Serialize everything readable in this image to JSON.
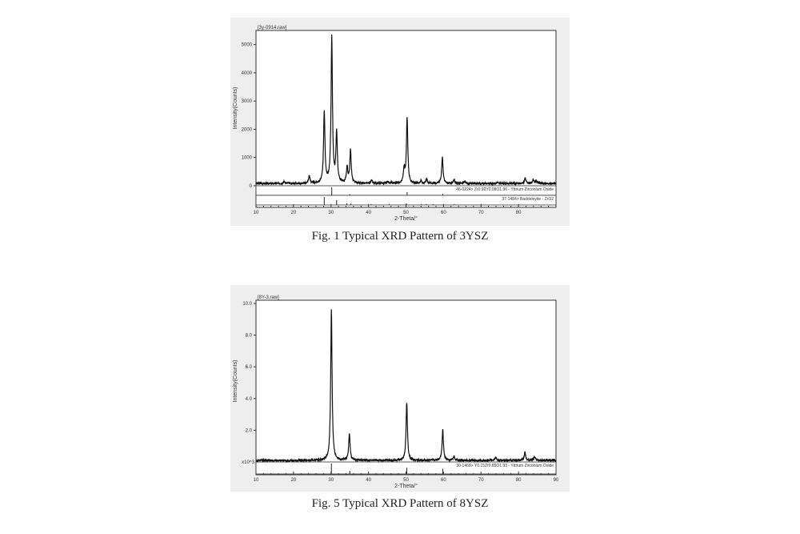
{
  "chart_data": [
    {
      "type": "line",
      "file_label": "[3y-0914.raw]",
      "xlabel": "2-Theta/°",
      "ylabel": "Intensity(Counts)",
      "xlim": [
        10,
        90
      ],
      "ylim": [
        0,
        5500
      ],
      "xticks": [
        10,
        20,
        30,
        40,
        50,
        60,
        70,
        80
      ],
      "yticks": [
        0,
        1000,
        2000,
        3000,
        4000,
        5000
      ],
      "y_multiplier_label": "",
      "baseline": 80,
      "peaks": [
        [
          17.5,
          150
        ],
        [
          24.2,
          350
        ],
        [
          28.2,
          2600
        ],
        [
          30.2,
          5250
        ],
        [
          31.5,
          1850
        ],
        [
          34.3,
          650
        ],
        [
          35.2,
          1250
        ],
        [
          38.5,
          100
        ],
        [
          40.8,
          200
        ],
        [
          45.0,
          150
        ],
        [
          46.0,
          120
        ],
        [
          49.5,
          600
        ],
        [
          50.3,
          2400
        ],
        [
          54.0,
          180
        ],
        [
          55.5,
          250
        ],
        [
          59.7,
          1000
        ],
        [
          62.8,
          200
        ],
        [
          65.7,
          150
        ],
        [
          74.4,
          120
        ],
        [
          81.8,
          280
        ],
        [
          83.9,
          200
        ],
        [
          84.7,
          180
        ],
        [
          88.0,
          60
        ]
      ],
      "references": [
        {
          "label": "46-0224> Zr0.92Y0.08O1.96 - Yttrium Zirconium Oxide",
          "lines": [
            [
              30.2,
              1
            ],
            [
              35.0,
              0.15
            ],
            [
              50.3,
              0.4
            ],
            [
              59.8,
              0.2
            ]
          ]
        },
        {
          "label": "37-1484> Baddeleyite - ZrO2",
          "lines": [
            [
              28.2,
              1
            ],
            [
              31.5,
              0.6
            ],
            [
              34.2,
              0.2
            ],
            [
              35.3,
              0.15
            ],
            [
              40.7,
              0.1
            ],
            [
              45.5,
              0.1
            ],
            [
              50.1,
              0.2
            ],
            [
              54.1,
              0.1
            ],
            [
              55.4,
              0.1
            ],
            [
              57.2,
              0.1
            ],
            [
              62.9,
              0.1
            ]
          ]
        }
      ]
    },
    {
      "type": "line",
      "file_label": "[8Y-3.raw]",
      "xlabel": "2-Theta/°",
      "ylabel": "Intensity(Counts)",
      "xlim": [
        10,
        90
      ],
      "ylim": [
        0,
        10.2
      ],
      "xticks": [
        10,
        20,
        30,
        40,
        50,
        60,
        70,
        80,
        90
      ],
      "yticks": [
        2.0,
        4.0,
        6.0,
        8.0,
        10.0
      ],
      "ytick_labels": [
        "2.0",
        "4.0",
        "6.0",
        "8.0",
        "10.0"
      ],
      "y_multiplier_label": "x10^3",
      "baseline": 0.1,
      "peaks": [
        [
          30.1,
          9.6
        ],
        [
          34.9,
          1.8
        ],
        [
          50.2,
          3.75
        ],
        [
          59.8,
          2.05
        ],
        [
          62.8,
          0.35
        ],
        [
          73.9,
          0.3
        ],
        [
          81.7,
          0.6
        ],
        [
          84.3,
          0.35
        ]
      ],
      "references": [
        {
          "label": "30-1468> Y0.15Zr0.85O1.93 - Yttrium Zirconium Oxide",
          "lines": [
            [
              30.1,
              1
            ],
            [
              35.0,
              0.3
            ],
            [
              50.2,
              0.6
            ],
            [
              59.8,
              0.5
            ]
          ]
        }
      ]
    }
  ],
  "captions": [
    "Fig. 1 Typical XRD Pattern of 3YSZ",
    "Fig. 5 Typical XRD Pattern of 8YSZ"
  ]
}
